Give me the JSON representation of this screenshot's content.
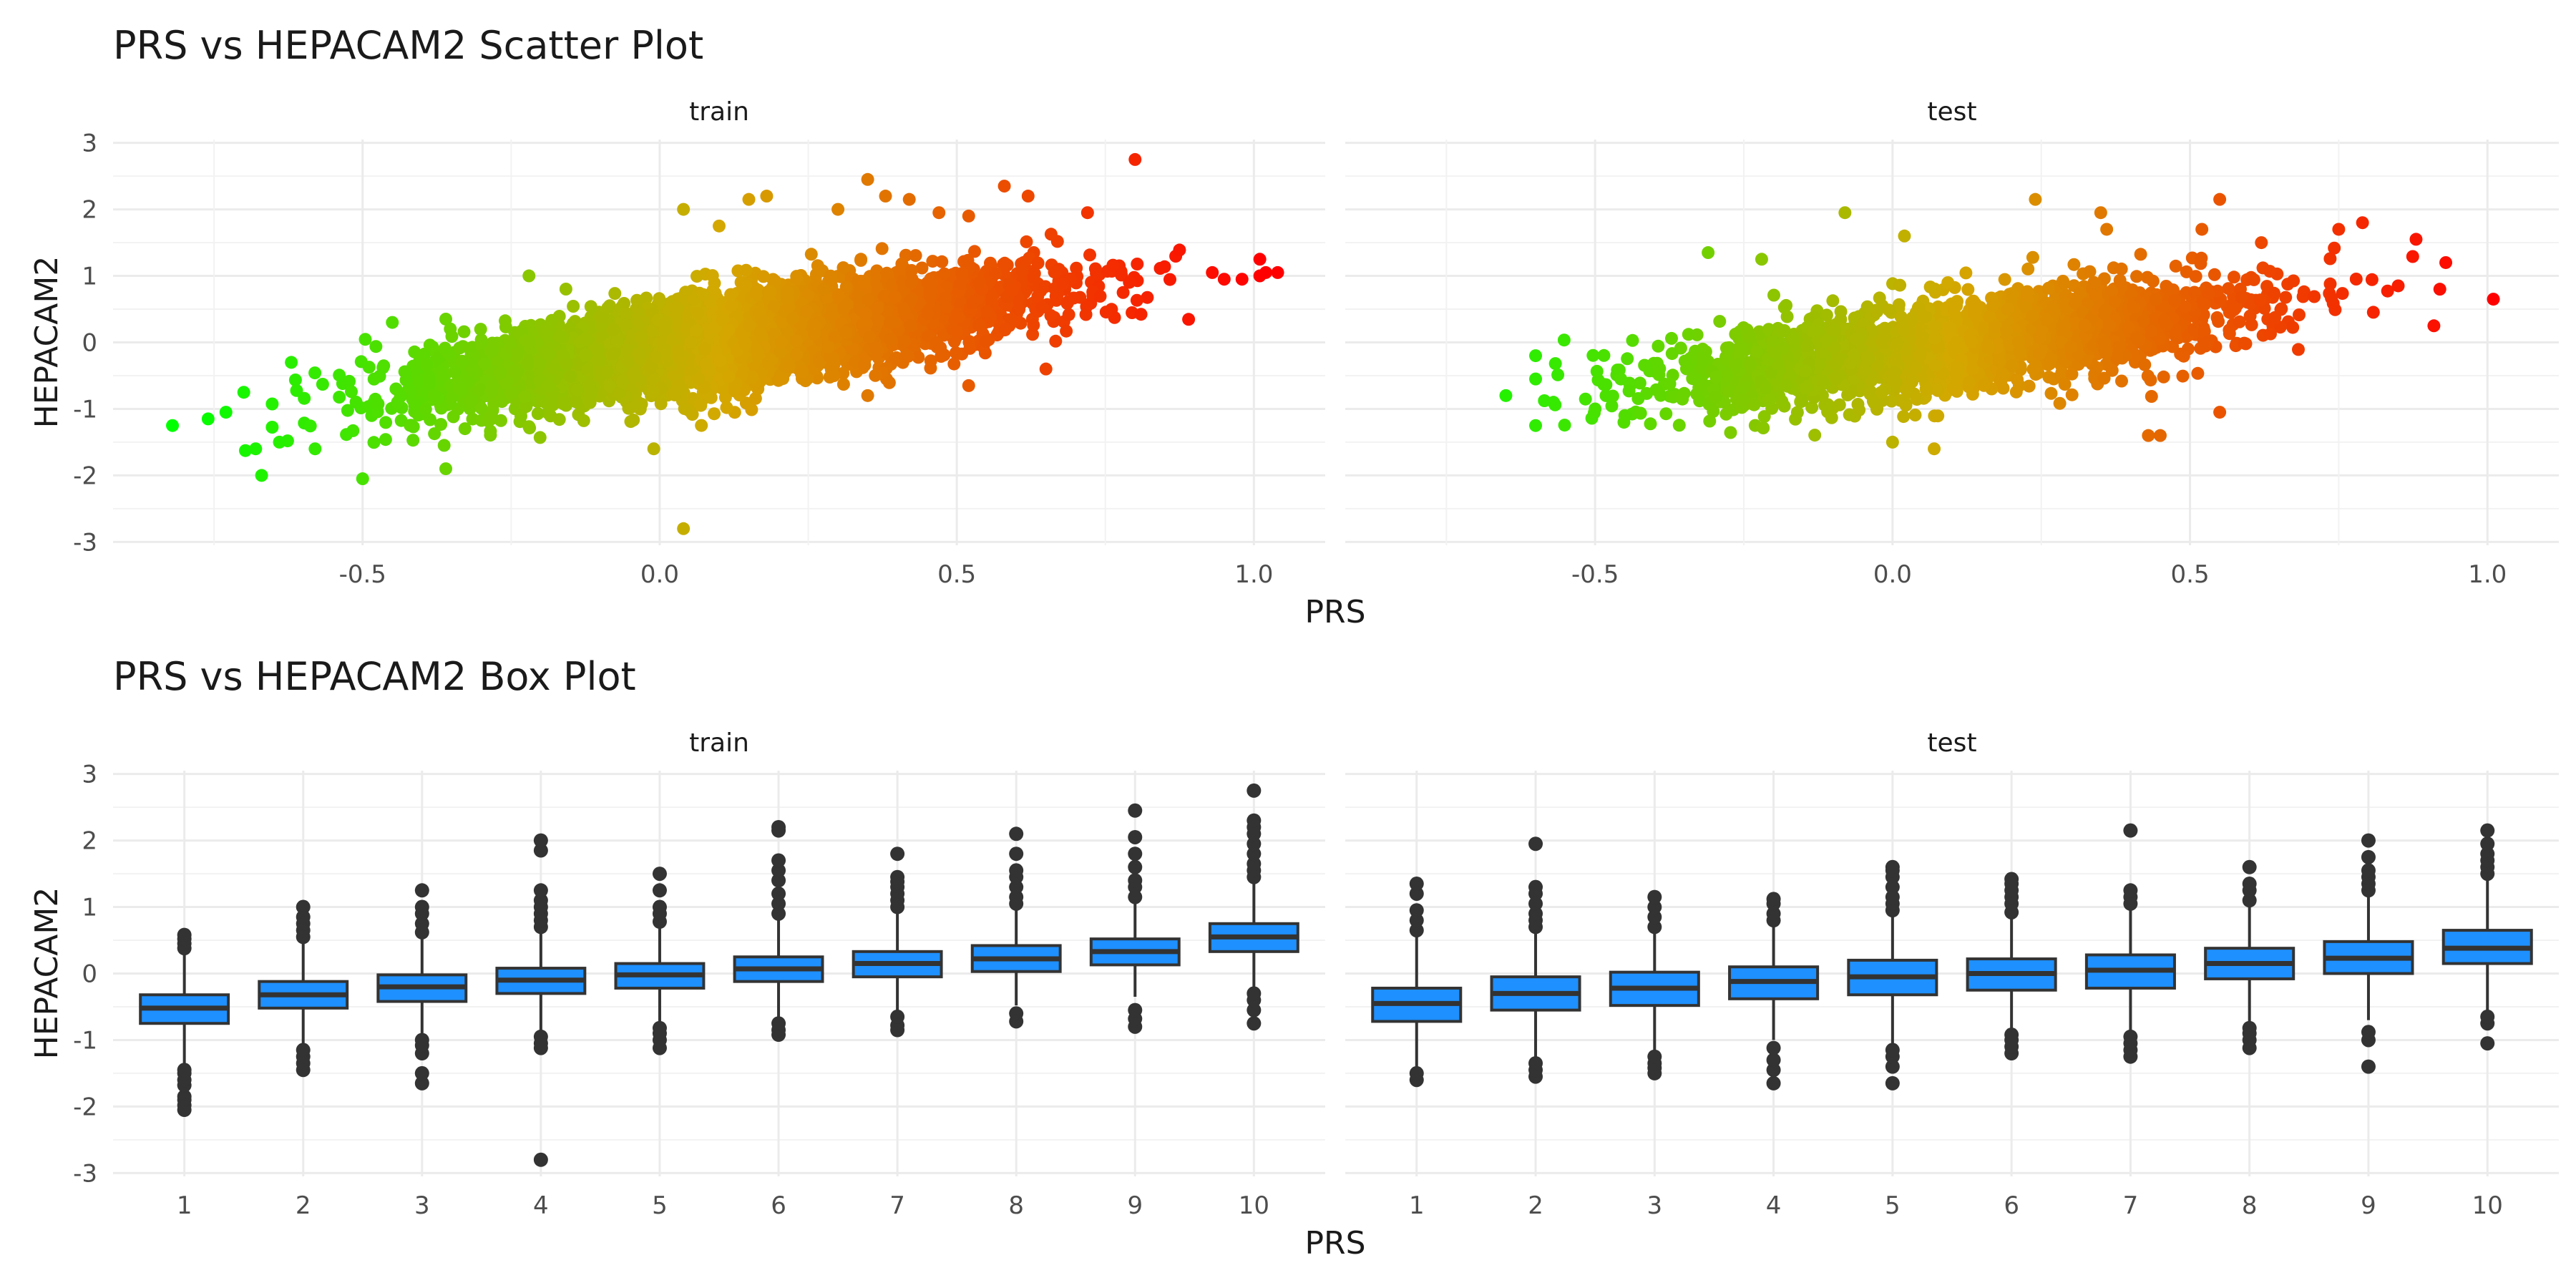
{
  "chart_data": [
    {
      "type": "scatter",
      "title": "PRS vs HEPACAM2 Scatter Plot",
      "xlabel": "PRS",
      "ylabel": "HEPACAM2",
      "xlim": [
        -0.92,
        1.12
      ],
      "ylim": [
        -3.05,
        3.05
      ],
      "x_ticks": [
        "-0.5",
        "0.0",
        "0.5",
        "1.0"
      ],
      "x_tick_values": [
        -0.5,
        0.0,
        0.5,
        1.0
      ],
      "y_ticks": [
        "3",
        "2",
        "1",
        "0",
        "-1",
        "-2",
        "-3"
      ],
      "y_tick_values": [
        3,
        2,
        1,
        0,
        -1,
        -2,
        -3
      ],
      "grid": true,
      "color_scale": {
        "low": "#00ff00",
        "mid": "#d4a800",
        "high": "#ff0000",
        "min": -0.8,
        "max": 1.0
      },
      "facets": [
        {
          "name": "train",
          "cloud": {
            "n": 5200,
            "x_mean": 0.12,
            "x_sd": 0.24,
            "x_min": -0.7,
            "x_max": 0.95,
            "slope": 1.32,
            "intercept": -0.12,
            "noise_sd": 0.33
          },
          "points": [
            {
              "x": -0.82,
              "y": -1.25
            },
            {
              "x": -0.76,
              "y": -1.15
            },
            {
              "x": -0.73,
              "y": -1.05
            },
            {
              "x": -0.7,
              "y": -0.75
            },
            {
              "x": -0.67,
              "y": -2.0
            },
            {
              "x": -0.68,
              "y": -1.6
            },
            {
              "x": -0.64,
              "y": -1.5
            },
            {
              "x": -0.58,
              "y": -1.6
            },
            {
              "x": -0.5,
              "y": -2.05
            },
            {
              "x": -0.62,
              "y": -0.3
            },
            {
              "x": -0.45,
              "y": 0.3
            },
            {
              "x": -0.36,
              "y": 0.35
            },
            {
              "x": -0.36,
              "y": -1.9
            },
            {
              "x": -0.22,
              "y": 1.0
            },
            {
              "x": 0.04,
              "y": 2.0
            },
            {
              "x": 0.1,
              "y": 1.75
            },
            {
              "x": 0.15,
              "y": 2.15
            },
            {
              "x": 0.18,
              "y": 2.2
            },
            {
              "x": 0.3,
              "y": 2.0
            },
            {
              "x": 0.35,
              "y": 2.45
            },
            {
              "x": 0.38,
              "y": 2.2
            },
            {
              "x": 0.42,
              "y": 2.15
            },
            {
              "x": 0.47,
              "y": 1.95
            },
            {
              "x": 0.52,
              "y": 1.9
            },
            {
              "x": 0.58,
              "y": 2.35
            },
            {
              "x": 0.62,
              "y": 2.2
            },
            {
              "x": 0.72,
              "y": 1.95
            },
            {
              "x": 0.8,
              "y": 2.75
            },
            {
              "x": 0.04,
              "y": -2.8
            },
            {
              "x": -0.01,
              "y": -1.6
            },
            {
              "x": 0.35,
              "y": -0.8
            },
            {
              "x": 0.52,
              "y": -0.65
            },
            {
              "x": 0.65,
              "y": -0.4
            },
            {
              "x": 0.95,
              "y": 0.95
            },
            {
              "x": 0.98,
              "y": 0.95
            },
            {
              "x": 1.01,
              "y": 1.25
            },
            {
              "x": 1.02,
              "y": 1.05
            },
            {
              "x": 1.04,
              "y": 1.05
            },
            {
              "x": 1.01,
              "y": 1.0
            },
            {
              "x": 0.93,
              "y": 1.05
            }
          ]
        },
        {
          "name": "test",
          "cloud": {
            "n": 2300,
            "x_mean": 0.12,
            "x_sd": 0.24,
            "x_min": -0.6,
            "x_max": 0.9,
            "slope": 1.1,
            "intercept": -0.15,
            "noise_sd": 0.35
          },
          "points": [
            {
              "x": -0.65,
              "y": -0.8
            },
            {
              "x": -0.6,
              "y": -0.55
            },
            {
              "x": -0.6,
              "y": -1.25
            },
            {
              "x": -0.57,
              "y": -0.9
            },
            {
              "x": -0.6,
              "y": -0.2
            },
            {
              "x": -0.5,
              "y": -1.0
            },
            {
              "x": -0.45,
              "y": -1.1
            },
            {
              "x": -0.31,
              "y": 1.35
            },
            {
              "x": -0.22,
              "y": 1.25
            },
            {
              "x": -0.08,
              "y": 1.95
            },
            {
              "x": 0.02,
              "y": 1.6
            },
            {
              "x": 0.24,
              "y": 2.15
            },
            {
              "x": 0.35,
              "y": 1.95
            },
            {
              "x": 0.36,
              "y": 1.7
            },
            {
              "x": 0.52,
              "y": 1.7
            },
            {
              "x": 0.55,
              "y": 2.15
            },
            {
              "x": 0.62,
              "y": 1.5
            },
            {
              "x": 0.75,
              "y": 1.7
            },
            {
              "x": 0.79,
              "y": 1.8
            },
            {
              "x": 0.88,
              "y": 1.55
            },
            {
              "x": 0.93,
              "y": 1.2
            },
            {
              "x": 0.92,
              "y": 0.8
            },
            {
              "x": 0.91,
              "y": 0.25
            },
            {
              "x": 1.01,
              "y": 0.65
            },
            {
              "x": 0.85,
              "y": 0.85
            },
            {
              "x": 0.43,
              "y": -1.4
            },
            {
              "x": 0.45,
              "y": -1.4
            },
            {
              "x": 0.55,
              "y": -1.05
            },
            {
              "x": 0.07,
              "y": -1.6
            },
            {
              "x": 0.0,
              "y": -1.5
            }
          ]
        }
      ]
    },
    {
      "type": "box",
      "title": "PRS vs HEPACAM2 Box Plot",
      "xlabel": "PRS",
      "ylabel": "HEPACAM2",
      "categories": [
        "1",
        "2",
        "3",
        "4",
        "5",
        "6",
        "7",
        "8",
        "9",
        "10"
      ],
      "ylim": [
        -3.05,
        3.05
      ],
      "y_ticks": [
        "3",
        "2",
        "1",
        "0",
        "-1",
        "-2",
        "-3"
      ],
      "y_tick_values": [
        3,
        2,
        1,
        0,
        -1,
        -2,
        -3
      ],
      "grid": true,
      "box_color": "#1e90ff",
      "outline_color": "#333333",
      "facets": [
        {
          "name": "train",
          "boxes": [
            {
              "q1": -0.75,
              "median": -0.52,
              "q3": -0.32,
              "lo": -1.35,
              "hi": 0.3,
              "outliers": [
                -2.05,
                -1.98,
                -1.9,
                -1.85,
                -1.68,
                -1.6,
                -1.5,
                -1.45,
                0.38,
                0.45,
                0.52,
                0.58
              ]
            },
            {
              "q1": -0.52,
              "median": -0.32,
              "q3": -0.12,
              "lo": -1.1,
              "hi": 0.48,
              "outliers": [
                -1.45,
                -1.35,
                -1.25,
                -1.15,
                0.55,
                0.65,
                0.75,
                0.85,
                1.0
              ]
            },
            {
              "q1": -0.42,
              "median": -0.2,
              "q3": -0.02,
              "lo": -0.95,
              "hi": 0.55,
              "outliers": [
                -1.65,
                -1.5,
                -1.2,
                -1.08,
                -1.0,
                0.62,
                0.75,
                0.9,
                1.0,
                1.25
              ]
            },
            {
              "q1": -0.3,
              "median": -0.1,
              "q3": 0.08,
              "lo": -0.85,
              "hi": 0.62,
              "outliers": [
                -2.8,
                -1.12,
                -1.05,
                -0.95,
                0.7,
                0.8,
                0.9,
                1.0,
                1.1,
                1.25,
                1.85,
                2.0
              ]
            },
            {
              "q1": -0.22,
              "median": -0.02,
              "q3": 0.15,
              "lo": -0.75,
              "hi": 0.7,
              "outliers": [
                -1.12,
                -1.0,
                -0.9,
                -0.82,
                0.78,
                0.9,
                1.0,
                1.25,
                1.5
              ]
            },
            {
              "q1": -0.12,
              "median": 0.07,
              "q3": 0.25,
              "lo": -0.65,
              "hi": 0.8,
              "outliers": [
                -0.92,
                -0.85,
                -0.75,
                0.9,
                1.05,
                1.2,
                1.4,
                1.55,
                1.7,
                2.15,
                2.2
              ]
            },
            {
              "q1": -0.05,
              "median": 0.15,
              "q3": 0.33,
              "lo": -0.55,
              "hi": 0.9,
              "outliers": [
                -0.85,
                -0.78,
                -0.65,
                1.0,
                1.1,
                1.2,
                1.3,
                1.38,
                1.45,
                1.8
              ]
            },
            {
              "q1": 0.03,
              "median": 0.22,
              "q3": 0.42,
              "lo": -0.48,
              "hi": 0.95,
              "outliers": [
                -0.72,
                -0.6,
                1.05,
                1.15,
                1.3,
                1.45,
                1.55,
                1.8,
                2.1
              ]
            },
            {
              "q1": 0.13,
              "median": 0.33,
              "q3": 0.52,
              "lo": -0.35,
              "hi": 1.08,
              "outliers": [
                -0.8,
                -0.68,
                -0.55,
                1.15,
                1.3,
                1.4,
                1.6,
                1.8,
                2.05,
                2.45
              ]
            },
            {
              "q1": 0.33,
              "median": 0.55,
              "q3": 0.75,
              "lo": -0.2,
              "hi": 1.35,
              "outliers": [
                -0.75,
                -0.55,
                -0.4,
                -0.3,
                1.45,
                1.55,
                1.65,
                1.8,
                1.95,
                2.1,
                2.2,
                2.3,
                2.75
              ]
            }
          ]
        },
        {
          "name": "test",
          "boxes": [
            {
              "q1": -0.72,
              "median": -0.45,
              "q3": -0.22,
              "lo": -1.4,
              "hi": 0.55,
              "outliers": [
                -1.6,
                -1.5,
                0.65,
                0.8,
                0.95,
                1.2,
                1.35
              ]
            },
            {
              "q1": -0.55,
              "median": -0.3,
              "q3": -0.05,
              "lo": -1.25,
              "hi": 0.6,
              "outliers": [
                -1.55,
                -1.45,
                -1.35,
                0.7,
                0.8,
                0.9,
                1.05,
                1.2,
                1.3,
                1.95
              ]
            },
            {
              "q1": -0.48,
              "median": -0.22,
              "q3": 0.02,
              "lo": -1.15,
              "hi": 0.6,
              "outliers": [
                -1.5,
                -1.42,
                -1.35,
                -1.25,
                0.7,
                0.85,
                1.0,
                1.15
              ]
            },
            {
              "q1": -0.38,
              "median": -0.12,
              "q3": 0.1,
              "lo": -1.0,
              "hi": 0.72,
              "outliers": [
                -1.65,
                -1.45,
                -1.3,
                -1.12,
                0.8,
                0.9,
                1.05,
                1.12
              ]
            },
            {
              "q1": -0.32,
              "median": -0.05,
              "q3": 0.2,
              "lo": -1.05,
              "hi": 0.85,
              "outliers": [
                -1.65,
                -1.4,
                -1.25,
                -1.15,
                0.95,
                1.05,
                1.15,
                1.3,
                1.45,
                1.55,
                1.6
              ]
            },
            {
              "q1": -0.25,
              "median": 0.0,
              "q3": 0.22,
              "lo": -0.85,
              "hi": 0.82,
              "outliers": [
                -1.2,
                -1.1,
                -1.0,
                -0.92,
                0.92,
                1.05,
                1.15,
                1.25,
                1.35,
                1.42
              ]
            },
            {
              "q1": -0.22,
              "median": 0.05,
              "q3": 0.28,
              "lo": -0.9,
              "hi": 0.95,
              "outliers": [
                -1.25,
                -1.15,
                -1.05,
                -0.95,
                1.05,
                1.15,
                1.25,
                2.15
              ]
            },
            {
              "q1": -0.08,
              "median": 0.15,
              "q3": 0.38,
              "lo": -0.75,
              "hi": 1.0,
              "outliers": [
                -1.12,
                -1.0,
                -0.9,
                -0.82,
                1.1,
                1.25,
                1.35,
                1.6
              ]
            },
            {
              "q1": 0.0,
              "median": 0.23,
              "q3": 0.48,
              "lo": -0.7,
              "hi": 1.15,
              "outliers": [
                -1.4,
                -1.0,
                -0.88,
                1.25,
                1.35,
                1.45,
                1.55,
                1.75,
                2.0
              ]
            },
            {
              "q1": 0.15,
              "median": 0.38,
              "q3": 0.65,
              "lo": -0.55,
              "hi": 1.4,
              "outliers": [
                -1.05,
                -0.75,
                -0.65,
                1.5,
                1.6,
                1.7,
                1.8,
                1.95,
                2.15
              ]
            }
          ]
        }
      ]
    }
  ]
}
